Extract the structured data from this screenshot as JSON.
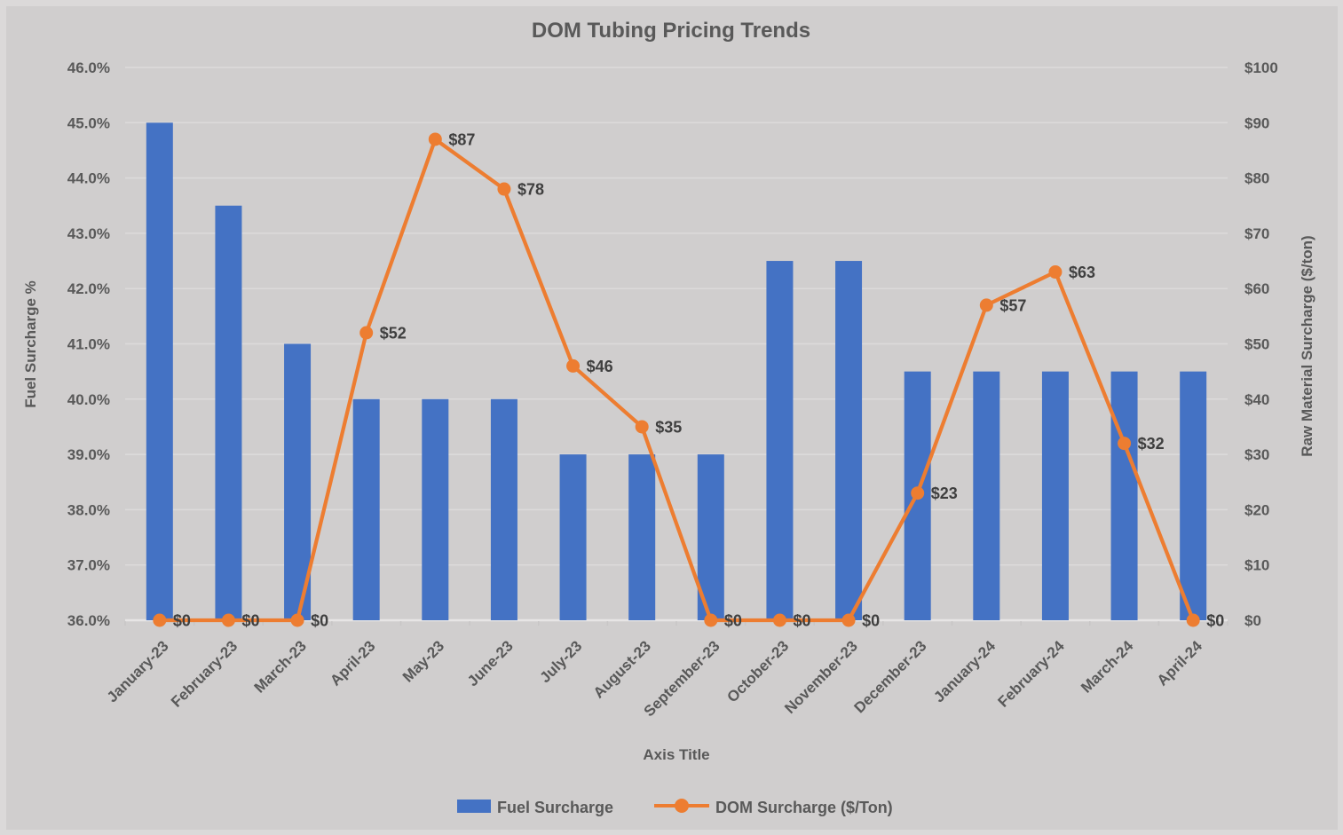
{
  "chart_data": {
    "type": "combo-bar-line",
    "title": "DOM Tubing Pricing Trends",
    "categories": [
      "January-23",
      "February-23",
      "March-23",
      "April-23",
      "May-23",
      "June-23",
      "July-23",
      "August-23",
      "September-23",
      "October-23",
      "November-23",
      "December-23",
      "January-24",
      "February-24",
      "March-24",
      "April-24"
    ],
    "series": [
      {
        "name": "Fuel Surcharge",
        "type": "bar",
        "axis": "left",
        "values": [
          45.0,
          43.5,
          41.0,
          40.0,
          40.0,
          40.0,
          39.0,
          39.0,
          39.0,
          42.5,
          42.5,
          40.5,
          40.5,
          40.5,
          40.5,
          40.5
        ]
      },
      {
        "name": "DOM Surcharge ($/Ton)",
        "type": "line",
        "axis": "right",
        "values": [
          0,
          0,
          0,
          52,
          87,
          78,
          46,
          35,
          0,
          0,
          0,
          23,
          57,
          63,
          32,
          0
        ],
        "data_labels": [
          "$0",
          "$0",
          "$0",
          "$52",
          "$87",
          "$78",
          "$46",
          "$35",
          "$0",
          "$0",
          "$0",
          "$23",
          "$57",
          "$63",
          "$32",
          "$0"
        ]
      }
    ],
    "left_axis": {
      "title": "Fuel Surcharge %",
      "min": 36,
      "max": 46,
      "step": 1,
      "tick_labels": [
        "36.0%",
        "37.0%",
        "38.0%",
        "39.0%",
        "40.0%",
        "41.0%",
        "42.0%",
        "43.0%",
        "44.0%",
        "45.0%",
        "46.0%"
      ]
    },
    "right_axis": {
      "title": "Raw Material Surcharge ($/ton)",
      "min": 0,
      "max": 100,
      "step": 10,
      "tick_labels": [
        "$0",
        "$10",
        "$20",
        "$30",
        "$40",
        "$50",
        "$60",
        "$70",
        "$80",
        "$90",
        "$100"
      ]
    },
    "x_axis": {
      "title": "Axis Title"
    },
    "legend": {
      "position": "bottom",
      "items": [
        "Fuel Surcharge",
        "DOM Surcharge ($/Ton)"
      ]
    },
    "grid": {
      "horizontal": true,
      "vertical": false
    }
  },
  "style": {
    "bar_color": "#4472C4",
    "line_color": "#ED7D31",
    "background": "#D0CECE",
    "frame_edge": "#DBD9D9",
    "gridline": "#DDDBDB",
    "baseline": "#E7E5E5",
    "tick_mark": "#C8C6C6",
    "axis_text": "#595959",
    "label_text": "#3F3F3F",
    "title_text": "#595959"
  }
}
